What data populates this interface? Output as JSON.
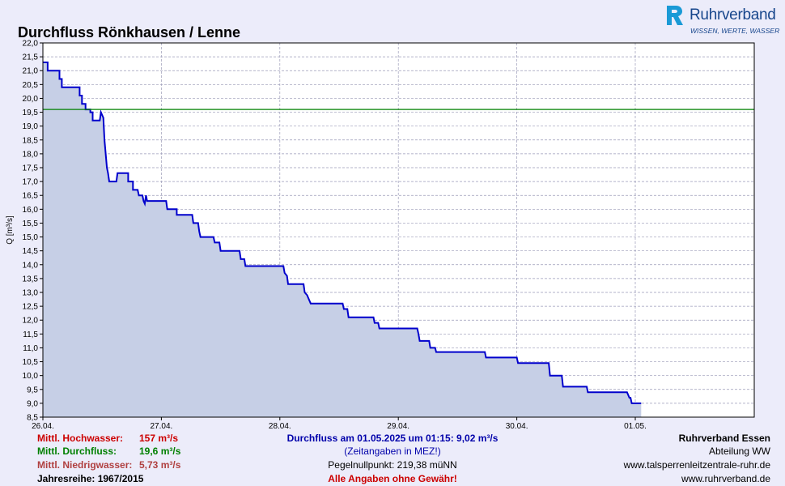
{
  "header": {
    "title": "Durchfluss Rönkhausen / Lenne",
    "brand": "Ruhrverband",
    "brand_claim": "WISSEN, WERTE, WASSER"
  },
  "chart_data": {
    "type": "line",
    "ylabel": "Q [m³/s]",
    "xlabel": "",
    "ylim": [
      8.5,
      22.0
    ],
    "xlim": [
      0,
      6.0
    ],
    "y_tick_step": 0.5,
    "x_ticks": [
      {
        "label": "26.04.",
        "x": 0
      },
      {
        "label": "27.04.",
        "x": 1
      },
      {
        "label": "28.04.",
        "x": 2
      },
      {
        "label": "29.04.",
        "x": 3
      },
      {
        "label": "30.04.",
        "x": 4
      },
      {
        "label": "01.05.",
        "x": 5
      }
    ],
    "grid": true,
    "reference_line": {
      "name": "Mittl. Durchfluss",
      "value": 19.6,
      "color": "#008000"
    },
    "series": [
      {
        "color": "#0000cc",
        "fill": "#c6cfe6",
        "points": [
          [
            0.0,
            21.3
          ],
          [
            0.04,
            21.3
          ],
          [
            0.04,
            21.0
          ],
          [
            0.14,
            21.0
          ],
          [
            0.14,
            20.7
          ],
          [
            0.16,
            20.7
          ],
          [
            0.16,
            20.4
          ],
          [
            0.31,
            20.4
          ],
          [
            0.31,
            20.1
          ],
          [
            0.33,
            20.1
          ],
          [
            0.33,
            19.8
          ],
          [
            0.36,
            19.8
          ],
          [
            0.36,
            19.6
          ],
          [
            0.4,
            19.6
          ],
          [
            0.4,
            19.5
          ],
          [
            0.42,
            19.5
          ],
          [
            0.42,
            19.2
          ],
          [
            0.48,
            19.2
          ],
          [
            0.49,
            19.5
          ],
          [
            0.51,
            19.3
          ],
          [
            0.52,
            18.5
          ],
          [
            0.53,
            18.0
          ],
          [
            0.54,
            17.5
          ],
          [
            0.55,
            17.3
          ],
          [
            0.56,
            17.0
          ],
          [
            0.62,
            17.0
          ],
          [
            0.63,
            17.3
          ],
          [
            0.72,
            17.3
          ],
          [
            0.72,
            17.0
          ],
          [
            0.76,
            17.0
          ],
          [
            0.76,
            16.7
          ],
          [
            0.8,
            16.7
          ],
          [
            0.81,
            16.5
          ],
          [
            0.84,
            16.5
          ],
          [
            0.85,
            16.3
          ],
          [
            0.86,
            16.2
          ],
          [
            0.87,
            16.5
          ],
          [
            0.88,
            16.3
          ],
          [
            1.04,
            16.3
          ],
          [
            1.05,
            16.0
          ],
          [
            1.13,
            16.0
          ],
          [
            1.13,
            15.8
          ],
          [
            1.26,
            15.8
          ],
          [
            1.27,
            15.5
          ],
          [
            1.31,
            15.5
          ],
          [
            1.32,
            15.2
          ],
          [
            1.33,
            15.0
          ],
          [
            1.44,
            15.0
          ],
          [
            1.45,
            14.8
          ],
          [
            1.49,
            14.8
          ],
          [
            1.5,
            14.5
          ],
          [
            1.66,
            14.5
          ],
          [
            1.67,
            14.2
          ],
          [
            1.7,
            14.2
          ],
          [
            1.71,
            13.95
          ],
          [
            2.03,
            13.95
          ],
          [
            2.04,
            13.7
          ],
          [
            2.06,
            13.6
          ],
          [
            2.07,
            13.3
          ],
          [
            2.2,
            13.3
          ],
          [
            2.21,
            13.0
          ],
          [
            2.23,
            12.9
          ],
          [
            2.24,
            12.8
          ],
          [
            2.26,
            12.6
          ],
          [
            2.53,
            12.6
          ],
          [
            2.54,
            12.4
          ],
          [
            2.57,
            12.4
          ],
          [
            2.58,
            12.1
          ],
          [
            2.79,
            12.1
          ],
          [
            2.8,
            11.9
          ],
          [
            2.83,
            11.9
          ],
          [
            2.84,
            11.7
          ],
          [
            3.16,
            11.7
          ],
          [
            3.17,
            11.5
          ],
          [
            3.18,
            11.25
          ],
          [
            3.26,
            11.25
          ],
          [
            3.27,
            11.0
          ],
          [
            3.31,
            11.0
          ],
          [
            3.32,
            10.85
          ],
          [
            3.73,
            10.85
          ],
          [
            3.74,
            10.65
          ],
          [
            4.0,
            10.65
          ],
          [
            4.01,
            10.45
          ],
          [
            4.27,
            10.45
          ],
          [
            4.28,
            10.0
          ],
          [
            4.38,
            10.0
          ],
          [
            4.39,
            9.6
          ],
          [
            4.59,
            9.6
          ],
          [
            4.6,
            9.4
          ],
          [
            4.93,
            9.4
          ],
          [
            4.95,
            9.2
          ],
          [
            4.96,
            9.2
          ],
          [
            4.97,
            9.0
          ],
          [
            5.05,
            9.0
          ]
        ]
      }
    ]
  },
  "footer": {
    "hochwasser_label": "Mittl. Hochwasser:",
    "hochwasser_value": "157 m³/s",
    "durchfluss_label": "Mittl. Durchfluss:",
    "durchfluss_value": "19,6 m³/s",
    "niedrig_label": "Mittl. Niedrigwasser:",
    "niedrig_value": "5,73 m³/s",
    "jahresreihe": "Jahresreihe: 1967/2015",
    "current": "Durchfluss am 01.05.2025 um 01:15: 9,02 m³/s",
    "zeitangaben": "(Zeitangaben in MEZ!)",
    "pegelnull": "Pegelnullpunkt: 219,38 müNN",
    "disclaimer": "Alle Angaben ohne Gewähr!",
    "org": "Ruhrverband Essen",
    "dept": "Abteilung WW",
    "url1": "www.talsperrenleitzentrale-ruhr.de",
    "url2": "www.ruhrverband.de"
  },
  "colors": {
    "hochwasser": "#cc0000",
    "durchfluss": "#008000",
    "niedrig": "#b04040",
    "current": "#0000aa",
    "disclaimer": "#cc0000"
  }
}
